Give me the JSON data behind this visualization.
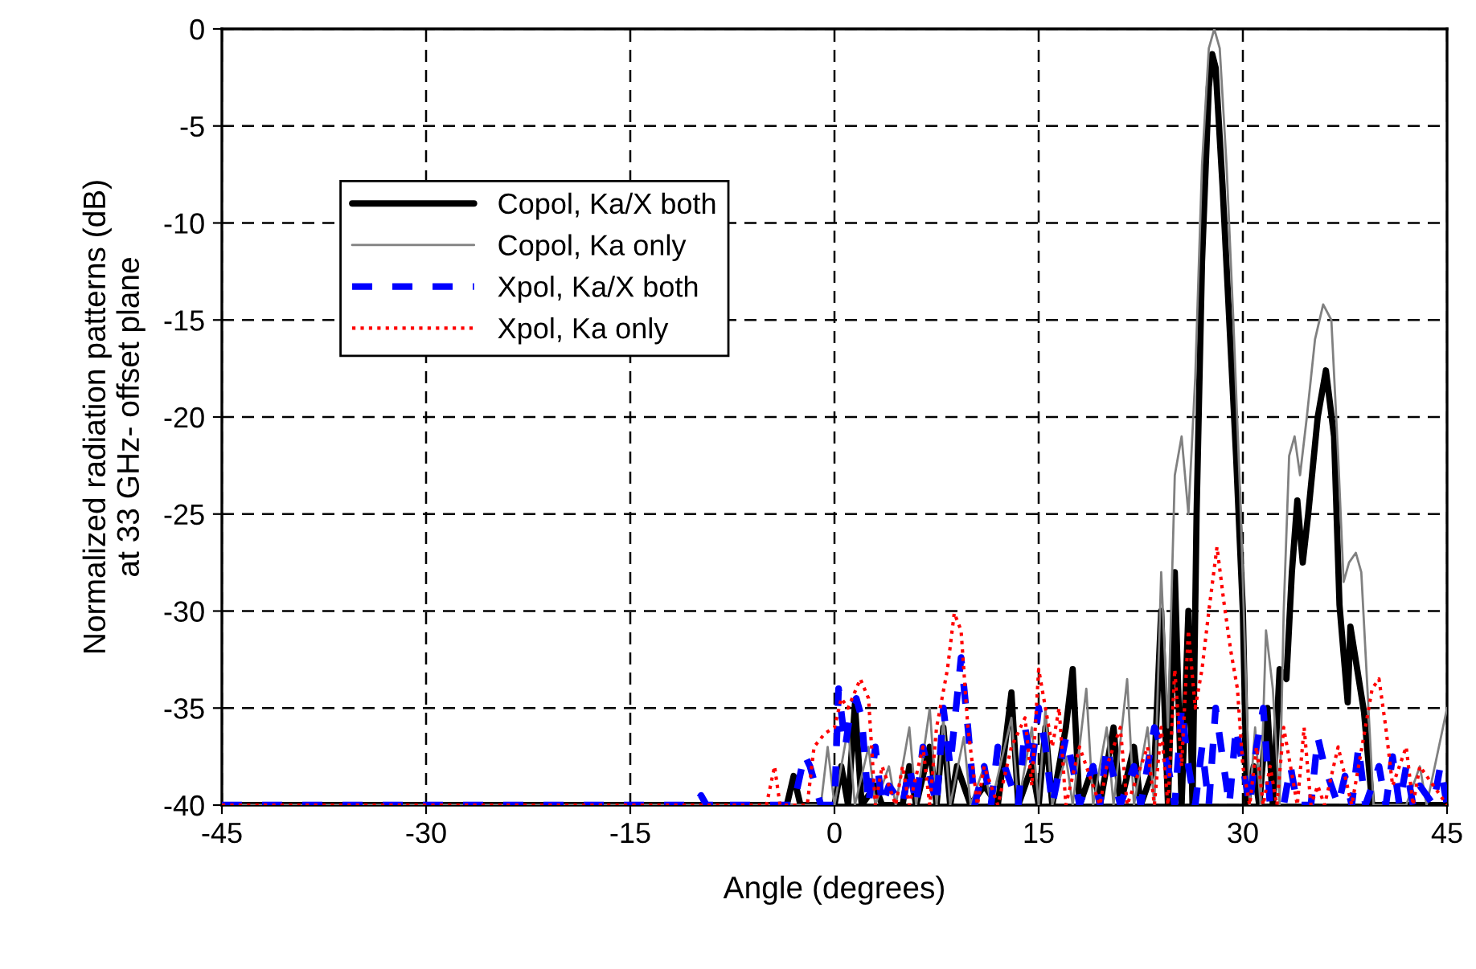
{
  "chart_data": {
    "type": "line",
    "xlabel": "Angle (degrees)",
    "ylabel": "Normalized radiation patterns (dB)\nat 33 GHz- offset plane",
    "xlim": [
      -45,
      45
    ],
    "xticks": [
      -45,
      -30,
      -15,
      0,
      15,
      30,
      45
    ],
    "ylim": [
      -40,
      0
    ],
    "yticks": [
      -40,
      -35,
      -30,
      -25,
      -20,
      -15,
      -10,
      -5,
      0
    ],
    "grid": true,
    "legend": "top left",
    "marker": "none",
    "series": [
      {
        "name": "Copol, Ka/X both",
        "color": "#000000",
        "line_style": "solid",
        "x": [
          -45,
          -3.5,
          -3,
          -2.5,
          0,
          0.5,
          1,
          1.5,
          2,
          3,
          3.5,
          5,
          5.5,
          6,
          7,
          7.5,
          8,
          8.5,
          9,
          10,
          11,
          12,
          13,
          13.5,
          14.5,
          15,
          15.5,
          16,
          17,
          17.5,
          18,
          19,
          19.5,
          20.5,
          21,
          22,
          22.5,
          23.5,
          24,
          24.5,
          25,
          25.5,
          26,
          26.3,
          26.6,
          27,
          27.5,
          27.75,
          28,
          28.5,
          29,
          29.5,
          30,
          30.3,
          30.8,
          31.2,
          31.8,
          32.2,
          32.7,
          33.2,
          33.6,
          34,
          34.4,
          34.8,
          35.5,
          36.1,
          36.7,
          37.1,
          37.7,
          37.9,
          38.9,
          39.5,
          45
        ],
        "values": [
          -40,
          -40,
          -38.5,
          -40,
          -40,
          -38,
          -40,
          -34.8,
          -40,
          -39,
          -40,
          -40,
          -38,
          -40,
          -37,
          -40,
          -36,
          -40,
          -38,
          -40,
          -39,
          -40,
          -34.2,
          -40,
          -38,
          -40,
          -36,
          -40,
          -36,
          -33,
          -40,
          -38,
          -40,
          -36,
          -40,
          -37,
          -40,
          -38,
          -30,
          -40,
          -28,
          -40,
          -30,
          -40,
          -25,
          -12,
          -3,
          -1.3,
          -2,
          -8,
          -15,
          -22,
          -30,
          -40,
          -38,
          -40,
          -35,
          -40,
          -33,
          -33.5,
          -28,
          -24.3,
          -27.5,
          -25,
          -20,
          -17.6,
          -21,
          -29.7,
          -34.7,
          -30.8,
          -35.2,
          -40,
          -40
        ]
      },
      {
        "name": "Copol, Ka only",
        "color": "#808080",
        "line_style": "solid",
        "x": [
          -45,
          -1,
          -0.5,
          0,
          1,
          1.5,
          2.5,
          3,
          4,
          4.5,
          5.5,
          6,
          7,
          7.5,
          8,
          8.5,
          9.5,
          10,
          11,
          11.5,
          13,
          13.5,
          14.5,
          15,
          15.5,
          16,
          17,
          17.5,
          18.5,
          19,
          20,
          20.5,
          21.5,
          22,
          23,
          23.5,
          24,
          24.5,
          25,
          25.5,
          26,
          26.5,
          27,
          27.5,
          27.9,
          28.3,
          28.8,
          29.3,
          29.8,
          30.2,
          30.5,
          30.9,
          31.3,
          31.7,
          32.2,
          32.7,
          33,
          33.4,
          33.8,
          34.2,
          34.7,
          35.3,
          35.9,
          36.5,
          37,
          37.4,
          37.8,
          38.3,
          38.7,
          39.3,
          39.6,
          42,
          43,
          43.5,
          45
        ],
        "values": [
          -40,
          -40,
          -37,
          -40,
          -36,
          -40,
          -37,
          -40,
          -38,
          -40,
          -36,
          -40,
          -35,
          -40,
          -35.5,
          -40,
          -36.5,
          -40,
          -38,
          -40,
          -35.5,
          -40,
          -36,
          -40,
          -35,
          -40,
          -37.5,
          -40,
          -34,
          -40,
          -36,
          -40,
          -33.5,
          -40,
          -36,
          -40,
          -28,
          -36,
          -23,
          -21,
          -25,
          -18,
          -7,
          -1,
          0,
          -1,
          -7,
          -15,
          -24,
          -33,
          -40,
          -36,
          -40,
          -31,
          -34,
          -40,
          -30,
          -22,
          -21,
          -23,
          -20,
          -16,
          -14.2,
          -15,
          -22,
          -28.5,
          -27.5,
          -27,
          -28,
          -36,
          -40,
          -40,
          -38,
          -40,
          -35
        ]
      },
      {
        "name": "Xpol, Ka/X both",
        "color": "#0000ff",
        "line_style": "dashed",
        "x": [
          -45,
          -10.2,
          -9.8,
          -9.4,
          -8.5,
          -8.2,
          -7.9,
          -3,
          -2.2,
          -1.8,
          -1,
          0,
          0.3,
          0.8,
          1.2,
          1.6,
          2,
          2.5,
          3,
          3.5,
          4,
          5,
          5.5,
          6,
          6.5,
          7.5,
          8,
          8.5,
          9.3,
          9.8,
          10.3,
          11,
          11.5,
          12,
          13.5,
          14,
          14.5,
          15,
          15.5,
          16,
          17,
          17.5,
          18,
          19,
          19.5,
          20,
          21,
          22,
          22.5,
          23.5,
          24.5,
          25,
          25.5,
          26,
          26.5,
          27,
          27.5,
          28,
          28.5,
          29,
          29.5,
          30,
          30.5,
          31,
          31.5,
          32,
          33,
          33.5,
          34,
          35,
          35.5,
          36,
          37,
          37.5,
          38,
          38.5,
          39,
          40,
          40.5,
          41,
          41.5,
          42,
          42.5,
          43,
          44,
          44.5,
          45
        ],
        "values": [
          -40,
          -40,
          -39.5,
          -40,
          -40,
          -39.8,
          -40,
          -40,
          -37.4,
          -38,
          -40,
          -40,
          -34,
          -37,
          -35,
          -34.5,
          -35.5,
          -40,
          -37,
          -40,
          -39,
          -40,
          -38,
          -40,
          -37,
          -40,
          -35,
          -38,
          -32.4,
          -36,
          -40,
          -38,
          -40,
          -37,
          -40,
          -36,
          -38,
          -35,
          -37,
          -40,
          -36.5,
          -38,
          -40,
          -38,
          -40,
          -37,
          -40,
          -38,
          -40,
          -36,
          -38,
          -40,
          -35,
          -38,
          -40,
          -37,
          -40,
          -35,
          -37.5,
          -40,
          -36,
          -38,
          -40,
          -37,
          -35,
          -40,
          -40,
          -38,
          -40,
          -40,
          -36.5,
          -38,
          -40,
          -38.5,
          -40,
          -37,
          -40,
          -38,
          -40,
          -37.5,
          -40,
          -38,
          -40,
          -39,
          -40,
          -38,
          -40
        ]
      },
      {
        "name": "Xpol, Ka only",
        "color": "#ff0000",
        "line_style": "dotted",
        "x": [
          -45,
          -11,
          -5,
          -4.4,
          -4,
          -2,
          -1.5,
          -0.7,
          0,
          0.5,
          1,
          1.9,
          2.5,
          3,
          3.5,
          4.5,
          5,
          5.5,
          6.5,
          7,
          7.5,
          8.3,
          8.8,
          9.3,
          9.8,
          10.5,
          11,
          12,
          13,
          14,
          14.5,
          15,
          16,
          16.5,
          17,
          18,
          19.5,
          20,
          21,
          21.5,
          23,
          23.5,
          24,
          24.5,
          25,
          25.5,
          26,
          26.5,
          27,
          27.5,
          28.1,
          28.6,
          29.1,
          29.6,
          30,
          30.5,
          31,
          31.5,
          32,
          32.5,
          33,
          34,
          34.5,
          35,
          35.5,
          36,
          37,
          38,
          38.5,
          39,
          39.5,
          40,
          40.5,
          41,
          42,
          42.5,
          43,
          44,
          45
        ],
        "values": [
          -40,
          -40,
          -40,
          -38,
          -40,
          -40,
          -37,
          -36.3,
          -36,
          -34.5,
          -35,
          -33.5,
          -34.5,
          -40,
          -38,
          -40,
          -38,
          -40,
          -37,
          -40,
          -36,
          -33,
          -30.1,
          -31,
          -36,
          -40,
          -38,
          -40,
          -37,
          -35.5,
          -39,
          -33,
          -37,
          -35,
          -40,
          -37,
          -40,
          -38,
          -36,
          -40,
          -37,
          -40,
          -36,
          -40,
          -33,
          -38,
          -31,
          -35,
          -33,
          -30,
          -26.7,
          -29.5,
          -32,
          -34,
          -38,
          -40,
          -37,
          -40,
          -38,
          -40,
          -36,
          -40,
          -36,
          -40,
          -39,
          -40,
          -37,
          -40,
          -38,
          -36,
          -34,
          -33.5,
          -36,
          -39,
          -37,
          -40,
          -38,
          -39,
          -40
        ]
      }
    ]
  }
}
